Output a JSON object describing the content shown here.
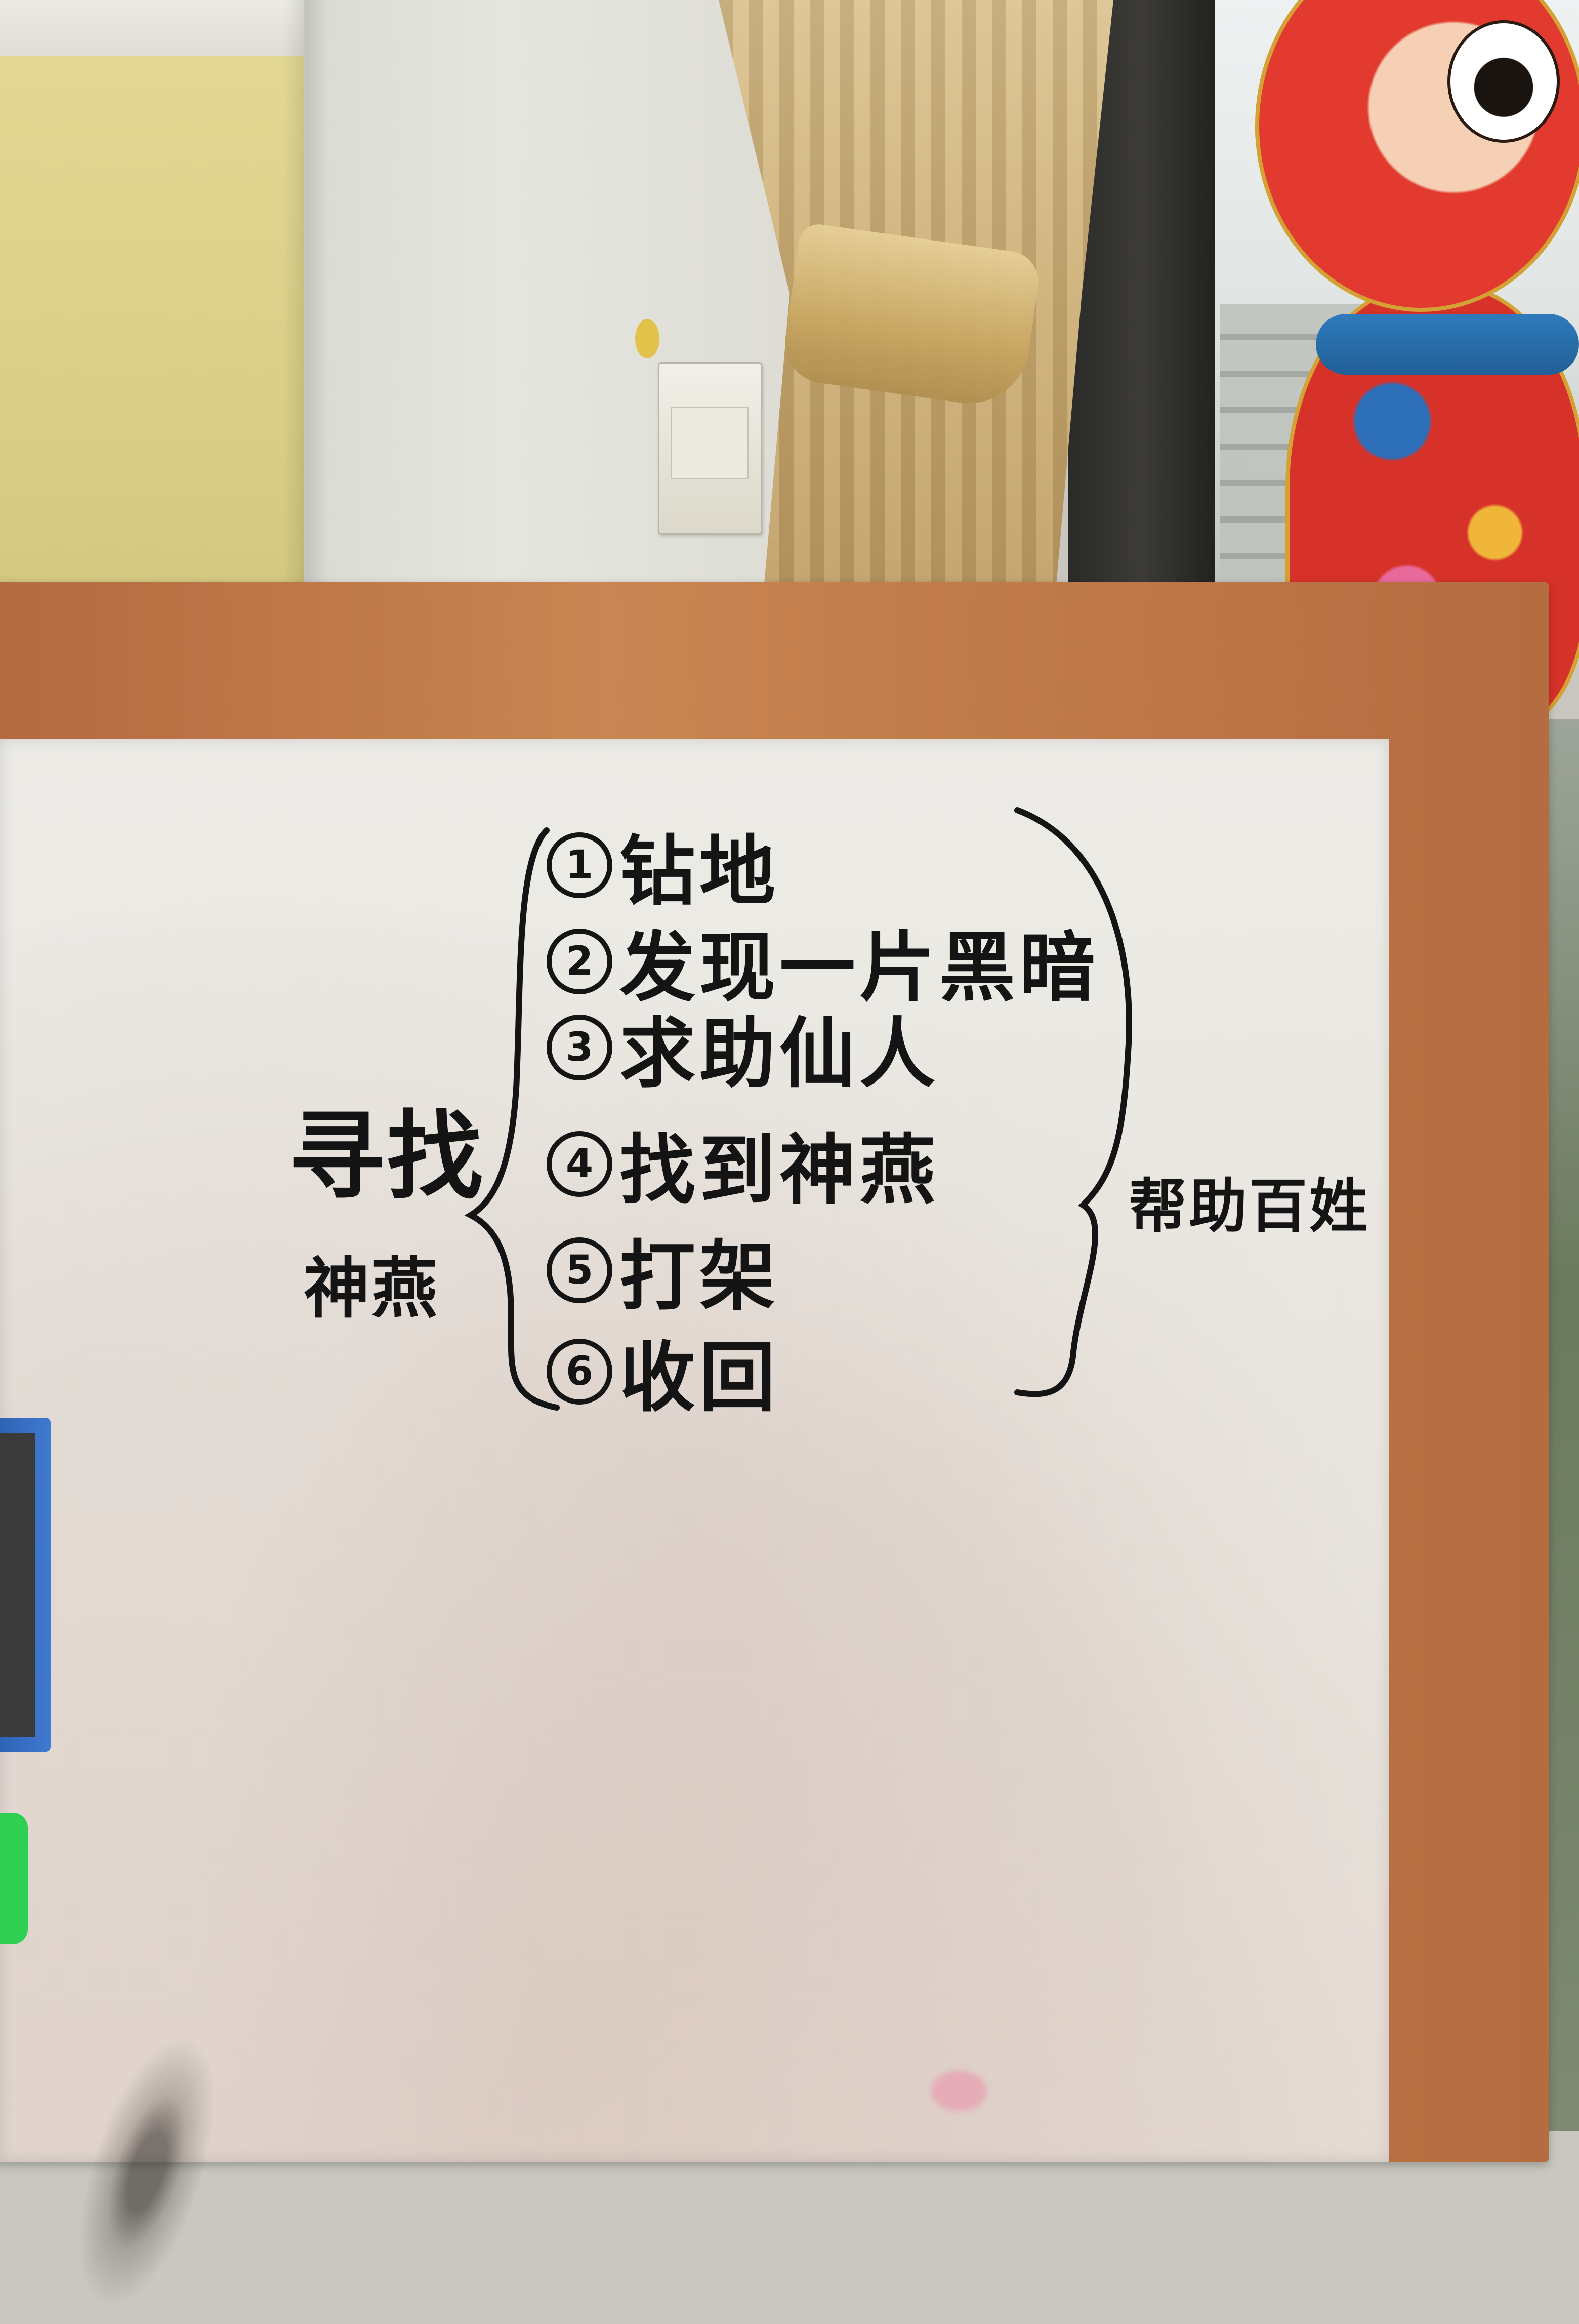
{
  "board": {
    "topic_line1": "寻找",
    "topic_line2": "神燕",
    "result": "帮助百姓",
    "steps": [
      {
        "num": "1",
        "text": "钻地"
      },
      {
        "num": "2",
        "text": "发现一片黑暗"
      },
      {
        "num": "3",
        "text": "求助仙人"
      },
      {
        "num": "4",
        "text": "找到神燕"
      },
      {
        "num": "5",
        "text": "打架"
      },
      {
        "num": "6",
        "text": "收回"
      }
    ]
  },
  "colors": {
    "marker": "#141414",
    "board_frame": "#c98552",
    "board_surface": "#ecebe6"
  },
  "icons": [
    "monkey-decoration",
    "hello-kitty-sticker"
  ]
}
